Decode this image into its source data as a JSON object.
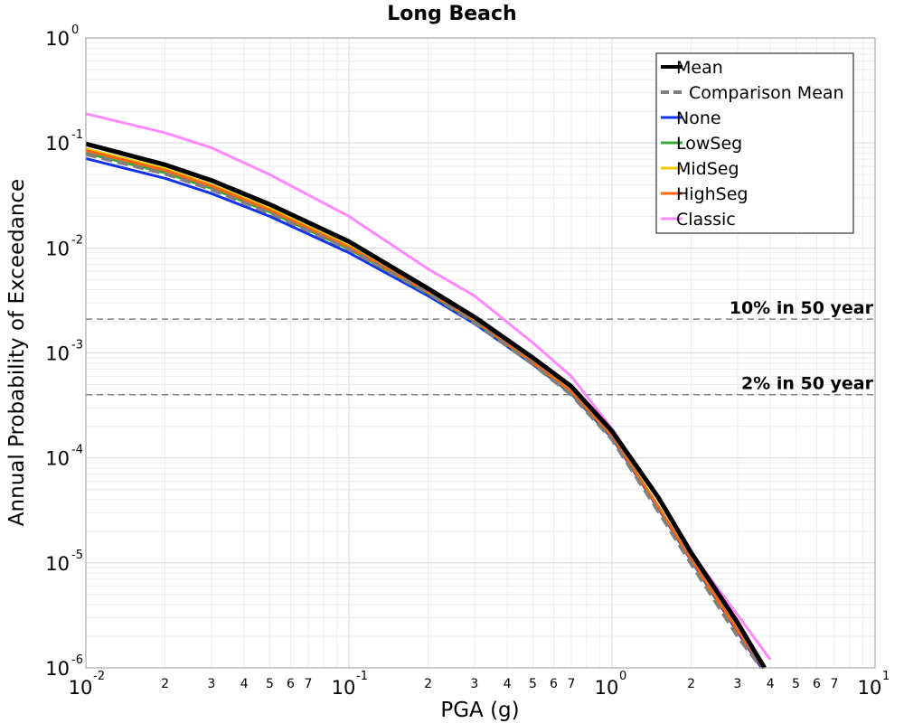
{
  "chart_data": {
    "type": "line",
    "title": "Long Beach",
    "xlabel": "PGA (g)",
    "ylabel": "Annual Probability of Exceedance",
    "x_scale": "log",
    "y_scale": "log",
    "xlim": [
      0.01,
      10
    ],
    "ylim": [
      1e-06,
      1
    ],
    "grid": true,
    "legend_position": "top-right",
    "x_ticks": [
      {
        "value": 0.01,
        "base": "10",
        "exp": "-2"
      },
      {
        "value": 0.1,
        "base": "10",
        "exp": "-1"
      },
      {
        "value": 1,
        "base": "10",
        "exp": "0"
      },
      {
        "value": 10,
        "base": "10",
        "exp": "1"
      }
    ],
    "x_minor_ticks": [
      {
        "value": 0.02,
        "label": "2"
      },
      {
        "value": 0.03,
        "label": "3"
      },
      {
        "value": 0.04,
        "label": "4"
      },
      {
        "value": 0.05,
        "label": "5"
      },
      {
        "value": 0.06,
        "label": "6"
      },
      {
        "value": 0.07,
        "label": "7"
      },
      {
        "value": 0.2,
        "label": "2"
      },
      {
        "value": 0.3,
        "label": "3"
      },
      {
        "value": 0.4,
        "label": "4"
      },
      {
        "value": 0.5,
        "label": "5"
      },
      {
        "value": 0.6,
        "label": "6"
      },
      {
        "value": 0.7,
        "label": "7"
      },
      {
        "value": 2,
        "label": "2"
      },
      {
        "value": 3,
        "label": "3"
      },
      {
        "value": 4,
        "label": "4"
      },
      {
        "value": 5,
        "label": "5"
      },
      {
        "value": 6,
        "label": "6"
      },
      {
        "value": 7,
        "label": "7"
      }
    ],
    "y_ticks": [
      {
        "value": 1,
        "base": "10",
        "exp": "0"
      },
      {
        "value": 0.1,
        "base": "10",
        "exp": "-1"
      },
      {
        "value": 0.01,
        "base": "10",
        "exp": "-2"
      },
      {
        "value": 0.001,
        "base": "10",
        "exp": "-3"
      },
      {
        "value": 0.0001,
        "base": "10",
        "exp": "-4"
      },
      {
        "value": 1e-05,
        "base": "10",
        "exp": "-5"
      },
      {
        "value": 1e-06,
        "base": "10",
        "exp": "-6"
      }
    ],
    "reference_lines": [
      {
        "label": "10% in 50 year",
        "y": 0.0021,
        "color": "#808080"
      },
      {
        "label": "2% in 50 year",
        "y": 0.0004,
        "color": "#808080"
      }
    ],
    "series": [
      {
        "name": "Classic",
        "color": "#ff88ff",
        "dash": false,
        "width": 3,
        "x": [
          0.01,
          0.02,
          0.03,
          0.05,
          0.1,
          0.2,
          0.3,
          0.5,
          0.7,
          1.0,
          1.5,
          2.0,
          3.0,
          4.0
        ],
        "y": [
          0.19,
          0.125,
          0.09,
          0.05,
          0.02,
          0.0063,
          0.0035,
          0.00125,
          0.0006,
          0.00019,
          4e-05,
          1.25e-05,
          3.2e-06,
          1.2e-06
        ]
      },
      {
        "name": "None",
        "color": "#1133ee",
        "dash": false,
        "width": 3,
        "x": [
          0.01,
          0.02,
          0.03,
          0.05,
          0.1,
          0.2,
          0.3,
          0.5,
          0.7,
          1.0,
          1.5,
          2.0,
          3.0,
          3.7
        ],
        "y": [
          0.071,
          0.046,
          0.033,
          0.02,
          0.009,
          0.0035,
          0.0019,
          0.00078,
          0.00041,
          0.000155,
          3.3e-05,
          1.05e-05,
          2.2e-06,
          1e-06
        ]
      },
      {
        "name": "LowSeg",
        "color": "#33aa33",
        "dash": false,
        "width": 3,
        "x": [
          0.01,
          0.02,
          0.03,
          0.05,
          0.1,
          0.2,
          0.3,
          0.5,
          0.7,
          1.0,
          1.5,
          2.0,
          3.0,
          3.75
        ],
        "y": [
          0.08,
          0.052,
          0.037,
          0.022,
          0.0098,
          0.0037,
          0.002,
          0.0008,
          0.00042,
          0.00016,
          3.4e-05,
          1.08e-05,
          2.3e-06,
          1e-06
        ]
      },
      {
        "name": "MidSeg",
        "color": "#eecc00",
        "dash": false,
        "width": 3,
        "x": [
          0.01,
          0.02,
          0.03,
          0.05,
          0.1,
          0.2,
          0.3,
          0.5,
          0.7,
          1.0,
          1.5,
          2.0,
          3.0,
          3.75
        ],
        "y": [
          0.088,
          0.057,
          0.04,
          0.024,
          0.0105,
          0.0039,
          0.0021,
          0.00083,
          0.00044,
          0.000165,
          3.5e-05,
          1.1e-05,
          2.4e-06,
          1e-06
        ]
      },
      {
        "name": "HighSeg",
        "color": "#ff6611",
        "dash": false,
        "width": 3,
        "x": [
          0.01,
          0.02,
          0.03,
          0.05,
          0.1,
          0.2,
          0.3,
          0.5,
          0.7,
          1.0,
          1.5,
          2.0,
          3.0,
          3.75
        ],
        "y": [
          0.085,
          0.055,
          0.039,
          0.023,
          0.0102,
          0.0038,
          0.00205,
          0.00081,
          0.00043,
          0.000162,
          3.4e-05,
          1.09e-05,
          2.3e-06,
          1e-06
        ]
      },
      {
        "name": "Comparison Mean",
        "color": "#808080",
        "dash": true,
        "width": 4,
        "x": [
          0.01,
          0.02,
          0.03,
          0.05,
          0.1,
          0.2,
          0.3,
          0.5,
          0.7,
          1.0,
          1.5,
          2.0,
          3.0,
          3.7
        ],
        "y": [
          0.078,
          0.051,
          0.036,
          0.0215,
          0.0097,
          0.0037,
          0.00195,
          0.00078,
          0.0004,
          0.00015,
          3.1e-05,
          9.8e-06,
          2e-06,
          1e-06
        ]
      },
      {
        "name": "Mean",
        "color": "#000000",
        "dash": false,
        "width": 5,
        "x": [
          0.01,
          0.02,
          0.03,
          0.05,
          0.1,
          0.2,
          0.3,
          0.5,
          0.7,
          1.0,
          1.5,
          2.0,
          3.0,
          3.8
        ],
        "y": [
          0.098,
          0.062,
          0.044,
          0.026,
          0.0115,
          0.0041,
          0.0022,
          0.0009,
          0.00048,
          0.00018,
          4.2e-05,
          1.25e-05,
          2.7e-06,
          1e-06
        ]
      }
    ],
    "legend_order": [
      "Mean",
      "Comparison Mean",
      "None",
      "LowSeg",
      "MidSeg",
      "HighSeg",
      "Classic"
    ]
  }
}
